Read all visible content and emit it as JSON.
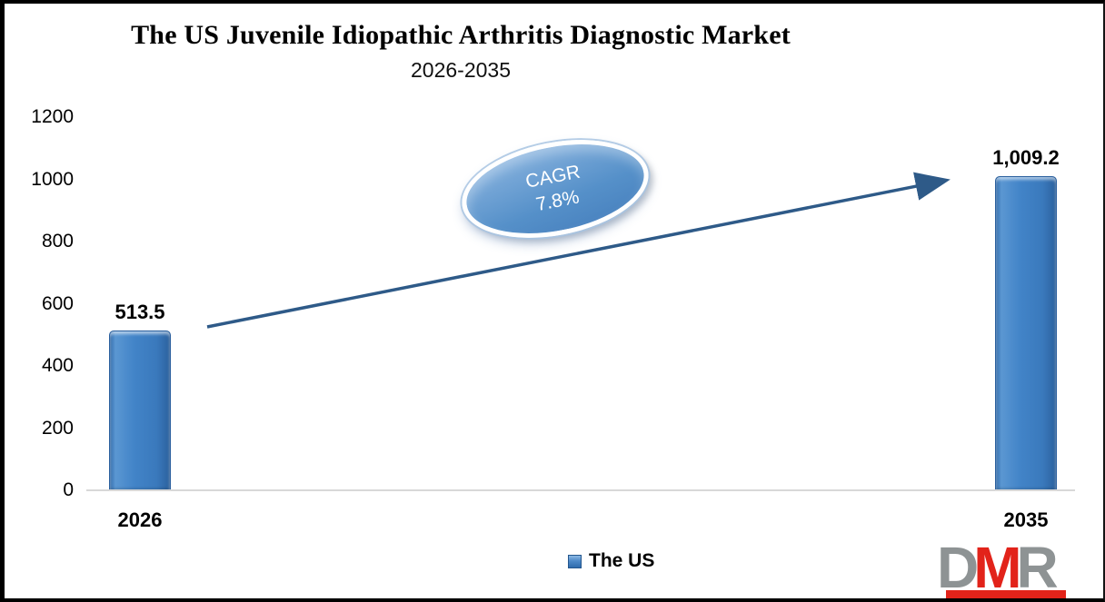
{
  "title": "The US Juvenile Idiopathic Arthritis Diagnostic Market",
  "subtitle": "2026-2035",
  "cagr_badge": {
    "line1": "CAGR",
    "line2": "7.8%"
  },
  "legend": {
    "label": "The US",
    "swatch_color": "#3D7EC1"
  },
  "logo": {
    "d": "D",
    "m": "M",
    "r": "R",
    "d_color": "#8E9394",
    "m_color": "#E2231A",
    "r_color": "#8E9394",
    "underline_color": "#E2231A"
  },
  "colors": {
    "bar": "#3D7EC1",
    "arrow": "#2E5A88",
    "axis_line": "#D8D8D8",
    "ellipse_fill": "#5590C9"
  },
  "chart_data": {
    "type": "bar",
    "categories": [
      "2026",
      "2035"
    ],
    "series": [
      {
        "name": "The US",
        "values": [
          513.5,
          1009.2
        ]
      }
    ],
    "value_labels": [
      "513.5",
      "1,009.2"
    ],
    "title": "The US Juvenile Idiopathic Arthritis Diagnostic Market",
    "subtitle": "2026-2035",
    "xlabel": "",
    "ylabel": "",
    "ylim": [
      0,
      1200
    ],
    "yticks": [
      0,
      200,
      400,
      600,
      800,
      1000,
      1200
    ],
    "grid": false,
    "legend_position": "bottom-center",
    "annotation": {
      "label": "CAGR 7.8%",
      "type": "ellipse-with-trend-arrow"
    }
  }
}
